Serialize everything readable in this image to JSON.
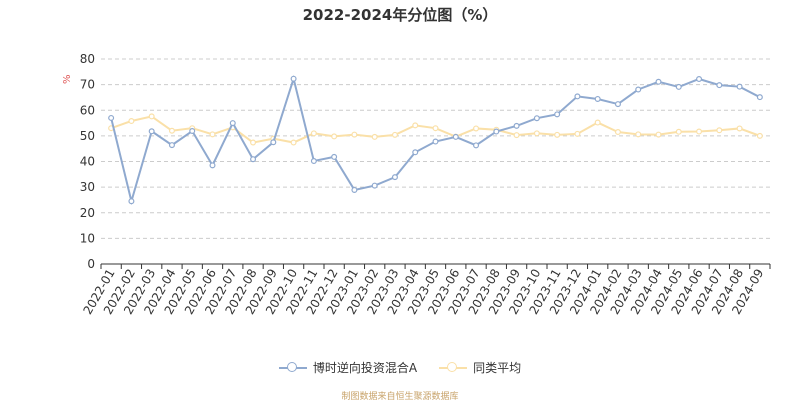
{
  "chart_data": {
    "type": "line",
    "title": "2022-2024年分位图（%）",
    "ylabel": "%",
    "xlabel": "",
    "ylim": [
      0,
      80
    ],
    "yticks": [
      0,
      10,
      20,
      30,
      40,
      50,
      60,
      70,
      80
    ],
    "grid": true,
    "legend_position": "bottom",
    "categories": [
      "2022-01",
      "2022-02",
      "2022-03",
      "2022-04",
      "2022-05",
      "2022-06",
      "2022-07",
      "2022-08",
      "2022-09",
      "2022-10",
      "2022-11",
      "2022-12",
      "2023-01",
      "2023-02",
      "2023-03",
      "2023-04",
      "2023-05",
      "2023-06",
      "2023-07",
      "2023-08",
      "2023-09",
      "2023-10",
      "2023-11",
      "2023-12",
      "2024-01",
      "2024-02",
      "2024-03",
      "2024-04",
      "2024-05",
      "2024-06",
      "2024-07",
      "2024-08",
      "2024-09"
    ],
    "series": [
      {
        "name": "博时逆向投资混合A",
        "color": "#8fa9cf",
        "values": [
          57.0,
          24.5,
          51.8,
          46.4,
          51.9,
          38.5,
          55.0,
          40.9,
          47.5,
          72.3,
          40.2,
          41.8,
          28.9,
          30.6,
          33.9,
          43.6,
          47.8,
          49.6,
          46.3,
          51.7,
          53.9,
          56.9,
          58.4,
          65.4,
          64.4,
          62.4,
          68.1,
          71.1,
          69.1,
          72.2,
          69.8,
          69.2,
          65.1
        ]
      },
      {
        "name": "同类平均",
        "color": "#fae0a8",
        "values": [
          53.0,
          55.8,
          57.6,
          52.0,
          53.0,
          50.6,
          53.3,
          47.4,
          48.9,
          47.4,
          51.0,
          49.8,
          50.5,
          49.6,
          50.4,
          54.1,
          53.0,
          49.7,
          52.9,
          52.4,
          50.3,
          51.0,
          50.4,
          50.8,
          55.2,
          51.5,
          50.6,
          50.5,
          51.6,
          51.7,
          52.2,
          52.9,
          50.0
        ]
      }
    ]
  },
  "legend": {
    "series1": "博时逆向投资混合A",
    "series2": "同类平均"
  },
  "source_text": "制图数据来自恒生聚源数据库"
}
